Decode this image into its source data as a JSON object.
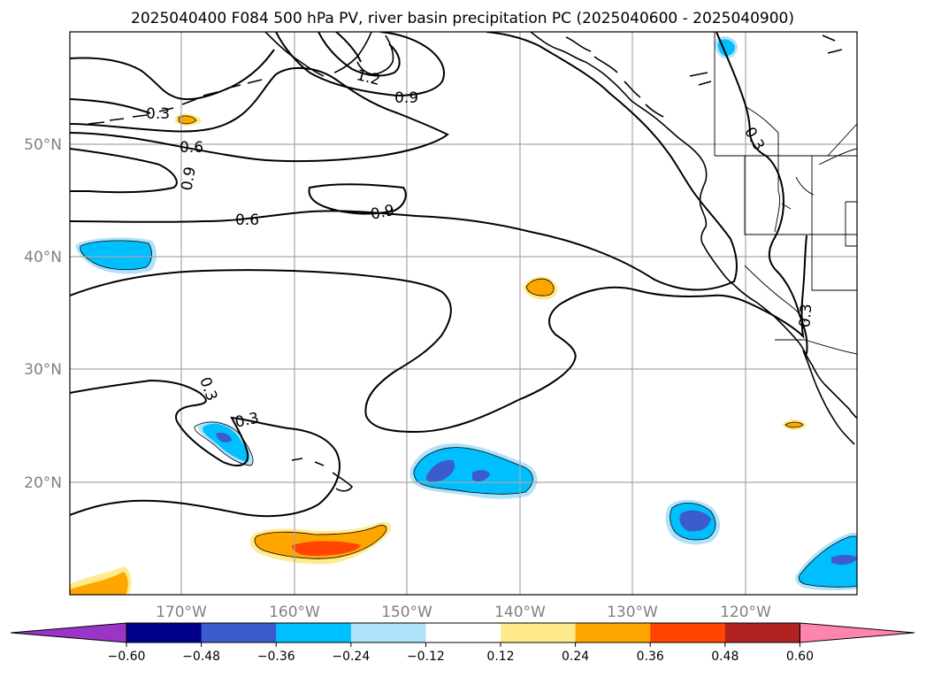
{
  "title": "2025040400 F084 500 hPa PV, river basin precipitation PC (2025040600 - 2025040900)",
  "lon_labels": [
    "170°W",
    "160°W",
    "150°W",
    "140°W",
    "130°W",
    "120°W"
  ],
  "lat_labels": [
    "50°N",
    "40°N",
    "30°N",
    "20°N"
  ],
  "contour_labels": [
    "0.3",
    "0.6",
    "0.9",
    "1.2",
    "0.9",
    "0.9",
    "0.6",
    "0.3",
    "0.3",
    "0.3",
    "0.3"
  ],
  "colorbar": {
    "tick_labels": [
      "−0.60",
      "−0.48",
      "−0.36",
      "−0.24",
      "−0.12",
      "0.12",
      "0.24",
      "0.36",
      "0.48",
      "0.60"
    ],
    "colors": [
      "#9a35c8",
      "#00008a",
      "#3a5ccc",
      "#00bfff",
      "#aee2fa",
      "#ffffff",
      "#ffeb8c",
      "#ffa500",
      "#ff4500",
      "#b22222",
      "#ff85ad"
    ]
  },
  "colors": {
    "blue_light": "#aee2fa",
    "blue": "#00bfff",
    "blue_dark": "#3a5ccc",
    "yellow": "#ffeb8c",
    "orange": "#ffa500",
    "red": "#ff4500"
  }
}
